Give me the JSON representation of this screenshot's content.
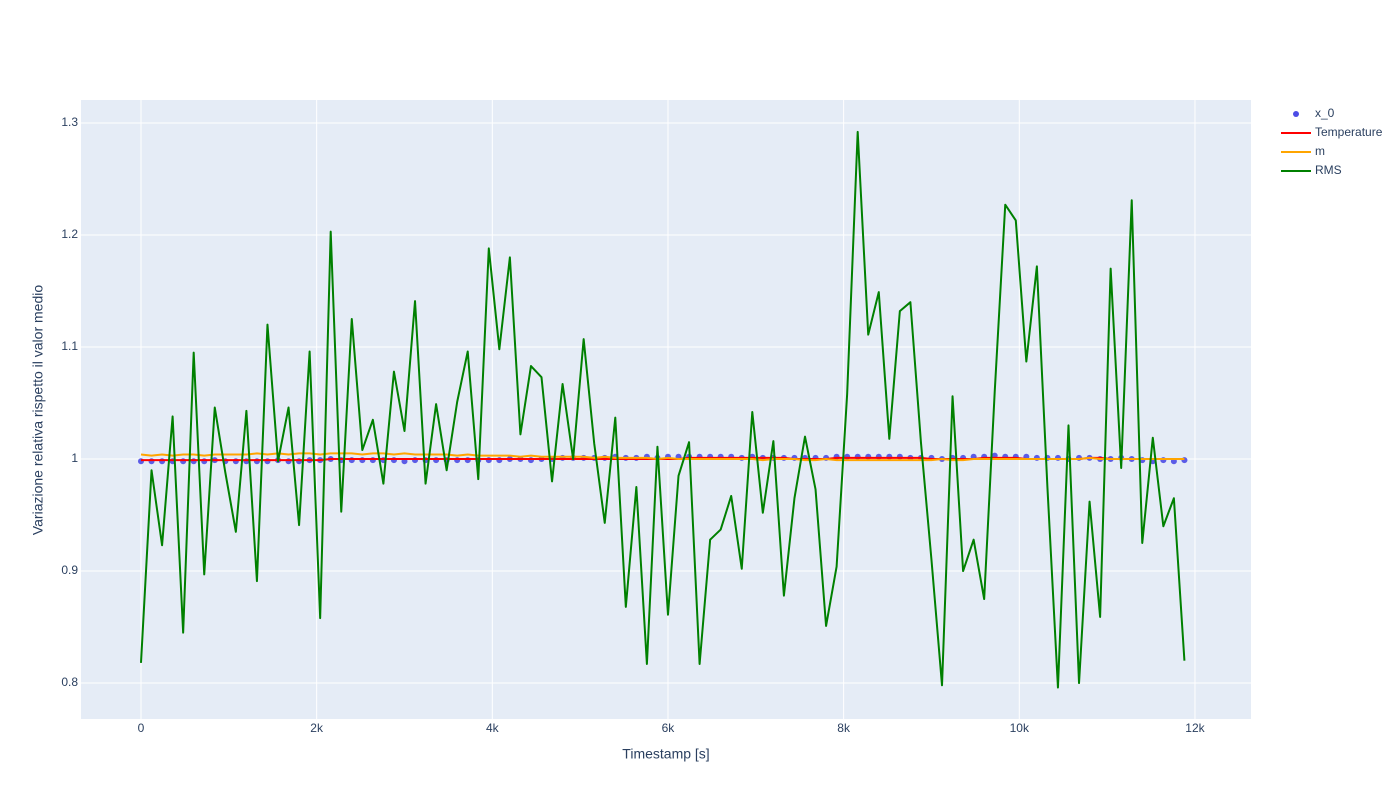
{
  "chart_data": {
    "type": "line",
    "x_label": "Timestamp [s]",
    "y_label": "Variazione relativa rispetto il valor medio",
    "x": [
      0,
      120,
      240,
      360,
      480,
      600,
      720,
      840,
      960,
      1080,
      1200,
      1320,
      1440,
      1560,
      1680,
      1800,
      1920,
      2040,
      2160,
      2280,
      2400,
      2520,
      2640,
      2760,
      2880,
      3000,
      3120,
      3240,
      3360,
      3480,
      3600,
      3720,
      3840,
      3960,
      4080,
      4200,
      4320,
      4440,
      4560,
      4680,
      4800,
      4920,
      5040,
      5160,
      5280,
      5400,
      5520,
      5640,
      5760,
      5880,
      6000,
      6120,
      6240,
      6360,
      6480,
      6600,
      6720,
      6840,
      6960,
      7080,
      7200,
      7320,
      7440,
      7560,
      7680,
      7800,
      7920,
      8040,
      8160,
      8280,
      8400,
      8520,
      8640,
      8760,
      8880,
      9000,
      9120,
      9240,
      9360,
      9480,
      9600,
      9720,
      9840,
      9960,
      10080,
      10200,
      10320,
      10440,
      10560,
      10680,
      10800,
      10920,
      11040,
      11160,
      11280,
      11400,
      11520,
      11640,
      11760,
      11880
    ],
    "series": [
      {
        "name": "x_0",
        "mode": "markers",
        "color": "#4c4ce6",
        "values": [
          0.998,
          0.998,
          0.998,
          0.998,
          0.998,
          0.998,
          0.998,
          0.999,
          0.998,
          0.998,
          0.998,
          0.998,
          0.998,
          0.999,
          0.998,
          0.998,
          0.999,
          0.999,
          1.0,
          0.999,
          0.999,
          0.999,
          0.999,
          0.999,
          0.999,
          0.998,
          0.999,
          0.999,
          0.999,
          0.999,
          0.999,
          0.999,
          0.999,
          0.999,
          0.999,
          1.0,
          1.0,
          0.999,
          1.0,
          1.0,
          1.001,
          1.001,
          1.001,
          1.001,
          1.001,
          1.002,
          1.001,
          1.001,
          1.002,
          1.001,
          1.002,
          1.002,
          1.002,
          1.002,
          1.002,
          1.002,
          1.002,
          1.001,
          1.002,
          1.001,
          1.001,
          1.001,
          1.001,
          1.001,
          1.001,
          1.001,
          1.002,
          1.002,
          1.002,
          1.002,
          1.002,
          1.002,
          1.002,
          1.001,
          1.001,
          1.001,
          1.0,
          1.001,
          1.001,
          1.002,
          1.002,
          1.003,
          1.002,
          1.002,
          1.002,
          1.001,
          1.001,
          1.001,
          1.0,
          1.001,
          1.001,
          1.0,
          1.0,
          1.001,
          1.0,
          0.999,
          0.998,
          0.999,
          0.998,
          0.999
        ]
      },
      {
        "name": "Temperature",
        "mode": "lines",
        "color": "#ff0000",
        "values": [
          0.999,
          0.999,
          0.999,
          0.999,
          0.999,
          0.999,
          0.999,
          0.999,
          0.999,
          0.999,
          0.999,
          0.999,
          0.999,
          0.999,
          0.999,
          0.999,
          0.999,
          0.999,
          1.0,
          1.0,
          1.0,
          1.0,
          1.0,
          1.0,
          1.0,
          1.0,
          1.0,
          1.0,
          1.0,
          1.0,
          1.0,
          1.0,
          1.0,
          1.0,
          1.0,
          1.0,
          1.0,
          1.0,
          1.0,
          1.0,
          1.0,
          1.0,
          1.0,
          1.0,
          1.0,
          1.0,
          1.0,
          1.0,
          1.0,
          1.0,
          1.0,
          1.0,
          1.001,
          1.001,
          1.001,
          1.001,
          1.001,
          1.001,
          1.001,
          1.001,
          1.001,
          1.001,
          1.0,
          1.0,
          1.0,
          1.0,
          1.001,
          1.001,
          1.001,
          1.001,
          1.001,
          1.001,
          1.001,
          1.001,
          1.001,
          1.0,
          1.0,
          1.0,
          1.0,
          1.0,
          1.001,
          1.001,
          1.001,
          1.001,
          1.0,
          1.0,
          1.0,
          1.0,
          1.0,
          1.0,
          1.001,
          1.001,
          1.0,
          1.0,
          1.0,
          1.0,
          1.0,
          1.0,
          1.0,
          1.0
        ]
      },
      {
        "name": "m",
        "mode": "lines",
        "color": "#ffa500",
        "values": [
          1.004,
          1.003,
          1.004,
          1.003,
          1.004,
          1.004,
          1.003,
          1.004,
          1.004,
          1.004,
          1.004,
          1.005,
          1.004,
          1.005,
          1.004,
          1.005,
          1.005,
          1.004,
          1.005,
          1.005,
          1.005,
          1.004,
          1.005,
          1.005,
          1.004,
          1.005,
          1.004,
          1.004,
          1.004,
          1.004,
          1.003,
          1.004,
          1.003,
          1.003,
          1.003,
          1.003,
          1.002,
          1.003,
          1.002,
          1.002,
          1.002,
          1.002,
          1.002,
          1.001,
          1.002,
          1.001,
          1.001,
          1.001,
          1.001,
          1.0,
          1.001,
          1.0,
          1.0,
          1.0,
          1.0,
          1.0,
          1.0,
          1.0,
          1.0,
          0.999,
          1.0,
          1.0,
          1.0,
          0.999,
          0.999,
          1.0,
          0.999,
          0.999,
          0.999,
          0.999,
          0.999,
          0.999,
          0.999,
          0.999,
          0.999,
          0.999,
          1.0,
          0.999,
          0.999,
          1.0,
          1.0,
          1.0,
          1.0,
          1.0,
          1.0,
          1.0,
          1.0,
          1.0,
          1.0,
          1.0,
          1.001,
          1.0,
          1.0,
          1.0,
          1.0,
          1.0,
          1.0,
          1.0,
          1.0,
          1.0
        ]
      },
      {
        "name": "RMS",
        "mode": "lines",
        "color": "#008000",
        "values": [
          0.818,
          0.99,
          0.923,
          1.038,
          0.845,
          1.095,
          0.897,
          1.046,
          0.988,
          0.935,
          1.043,
          0.891,
          1.12,
          0.998,
          1.046,
          0.941,
          1.096,
          0.858,
          1.203,
          0.953,
          1.125,
          1.008,
          1.035,
          0.978,
          1.078,
          1.025,
          1.141,
          0.978,
          1.049,
          0.99,
          1.051,
          1.096,
          0.982,
          1.188,
          1.098,
          1.18,
          1.022,
          1.083,
          1.073,
          0.98,
          1.067,
          1.0,
          1.107,
          1.014,
          0.943,
          1.037,
          0.868,
          0.975,
          0.817,
          1.011,
          0.861,
          0.985,
          1.015,
          0.817,
          0.928,
          0.937,
          0.967,
          0.902,
          1.042,
          0.952,
          1.016,
          0.878,
          0.965,
          1.02,
          0.973,
          0.851,
          0.904,
          1.058,
          1.292,
          1.111,
          1.149,
          1.018,
          1.132,
          1.14,
          1.015,
          0.91,
          0.798,
          1.056,
          0.9,
          0.928,
          0.875,
          1.06,
          1.227,
          1.213,
          1.087,
          1.172,
          0.975,
          0.796,
          1.03,
          0.8,
          0.962,
          0.859,
          1.17,
          0.992,
          1.231,
          0.925,
          1.019,
          0.94,
          0.965,
          0.82
        ]
      }
    ],
    "xlim": [
      -683,
      12638
    ],
    "ylim": [
      0.7679,
      1.3205
    ],
    "xticks": [
      0,
      {
        "value": 2000,
        "label": "2k"
      },
      {
        "value": 4000,
        "label": "4k"
      },
      {
        "value": 6000,
        "label": "6k"
      },
      {
        "value": 8000,
        "label": "8k"
      },
      {
        "value": 10000,
        "label": "10k"
      },
      {
        "value": 12000,
        "label": "12k"
      }
    ],
    "yticks": [
      0.8,
      0.9,
      1,
      1.1,
      1.2,
      1.3
    ],
    "grid": true,
    "legend": "right"
  }
}
